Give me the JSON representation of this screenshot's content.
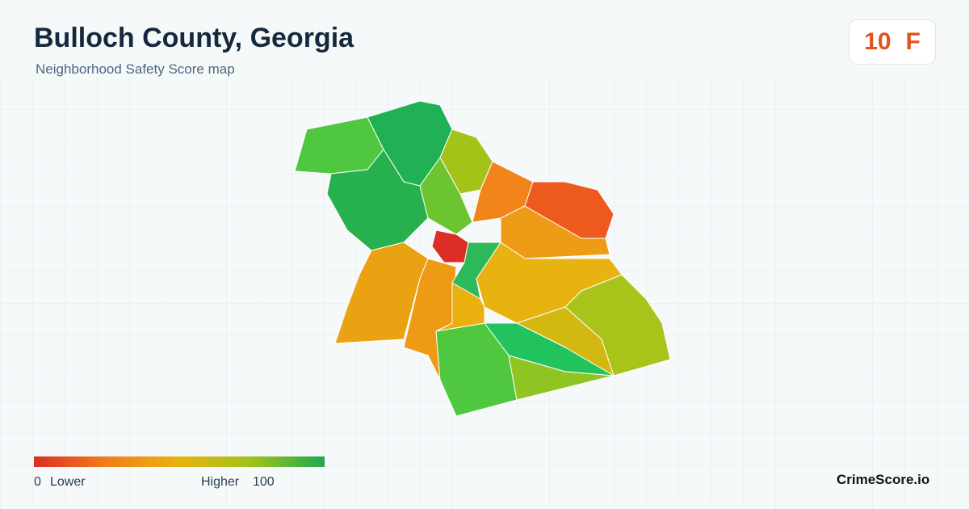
{
  "header": {
    "title": "Bulloch County, Georgia",
    "subtitle": "Neighborhood Safety Score map"
  },
  "score": {
    "value": 10,
    "grade": "F"
  },
  "legend": {
    "min": 0,
    "min_label": "Lower",
    "max_label": "Higher",
    "max": 100
  },
  "brand": "CrimeScore.io"
}
